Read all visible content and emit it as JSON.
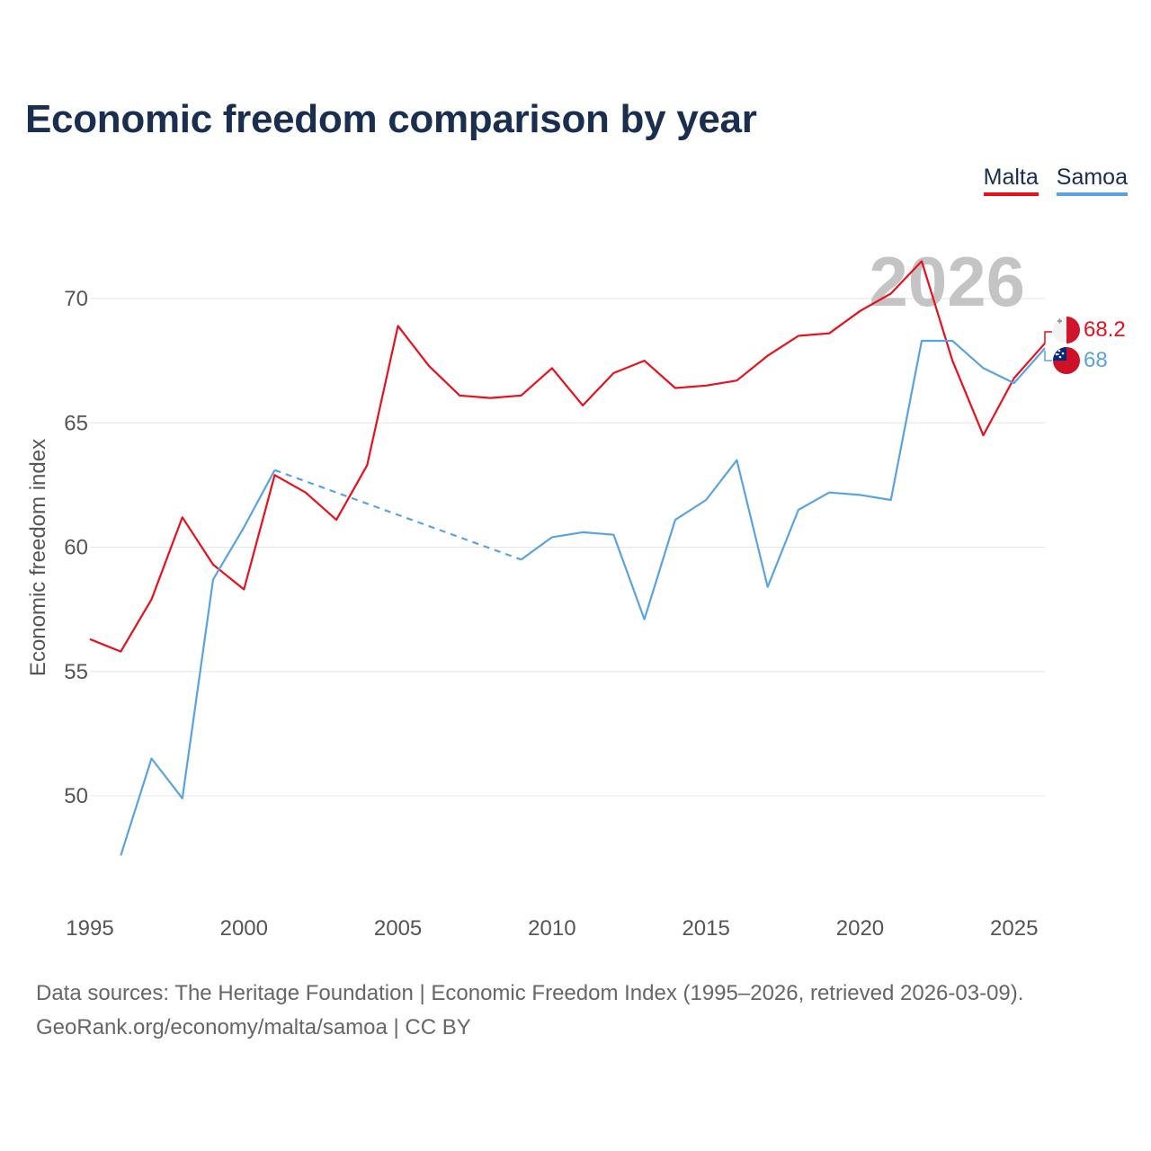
{
  "title": "Economic freedom comparison by year",
  "legend": [
    {
      "label": "Malta",
      "color": "#e8101c"
    },
    {
      "label": "Samoa",
      "color": "#5aa3e3"
    }
  ],
  "footer": {
    "line1": "Data sources: The Heritage Foundation | Economic Freedom Index (1995–2026, retrieved 2026-03-09).",
    "line2": "GeoRank.org/economy/malta/samoa | CC BY"
  },
  "chart_data": {
    "type": "line",
    "title": "Economic freedom comparison by year",
    "xlabel": "",
    "ylabel": "Economic freedom index",
    "xlim": [
      1995,
      2026
    ],
    "ylim": [
      46.5,
      72.5
    ],
    "grid": true,
    "x_ticks": [
      1995,
      2000,
      2005,
      2010,
      2015,
      2020,
      2025
    ],
    "y_ticks": [
      50,
      55,
      60,
      65,
      70
    ],
    "highlight_year": "2026",
    "series": [
      {
        "name": "Malta",
        "color": "#e8101c",
        "end_label": "68.2",
        "points": [
          [
            1995,
            56.3
          ],
          [
            1996,
            55.8
          ],
          [
            1997,
            57.9
          ],
          [
            1998,
            61.2
          ],
          [
            1999,
            59.3
          ],
          [
            2000,
            58.3
          ],
          [
            2001,
            62.9
          ],
          [
            2002,
            62.2
          ],
          [
            2003,
            61.1
          ],
          [
            2004,
            63.3
          ],
          [
            2005,
            68.9
          ],
          [
            2006,
            67.3
          ],
          [
            2007,
            66.1
          ],
          [
            2008,
            66.0
          ],
          [
            2009,
            66.1
          ],
          [
            2010,
            67.2
          ],
          [
            2011,
            65.7
          ],
          [
            2012,
            67.0
          ],
          [
            2013,
            67.5
          ],
          [
            2014,
            66.4
          ],
          [
            2015,
            66.5
          ],
          [
            2016,
            66.7
          ],
          [
            2017,
            67.7
          ],
          [
            2018,
            68.5
          ],
          [
            2019,
            68.6
          ],
          [
            2020,
            69.5
          ],
          [
            2021,
            70.2
          ],
          [
            2022,
            71.5
          ],
          [
            2023,
            67.5
          ],
          [
            2024,
            64.5
          ],
          [
            2025,
            66.8
          ],
          [
            2026,
            68.2
          ]
        ]
      },
      {
        "name": "Samoa",
        "color": "#5aa3e3",
        "end_label": "68",
        "points": [
          [
            1996,
            47.6
          ],
          [
            1997,
            51.5
          ],
          [
            1998,
            49.9
          ],
          [
            1999,
            58.7
          ],
          [
            2000,
            60.8
          ],
          [
            2001,
            63.1
          ],
          [
            2009,
            59.5
          ],
          [
            2010,
            60.4
          ],
          [
            2011,
            60.6
          ],
          [
            2012,
            60.5
          ],
          [
            2013,
            57.1
          ],
          [
            2014,
            61.1
          ],
          [
            2015,
            61.9
          ],
          [
            2016,
            63.5
          ],
          [
            2017,
            58.4
          ],
          [
            2018,
            61.5
          ],
          [
            2019,
            62.2
          ],
          [
            2020,
            62.1
          ],
          [
            2021,
            61.9
          ],
          [
            2022,
            68.3
          ],
          [
            2023,
            68.3
          ],
          [
            2024,
            67.2
          ],
          [
            2025,
            66.6
          ],
          [
            2026,
            68.0
          ]
        ],
        "gaps": [
          [
            2001,
            2009
          ]
        ]
      }
    ]
  }
}
